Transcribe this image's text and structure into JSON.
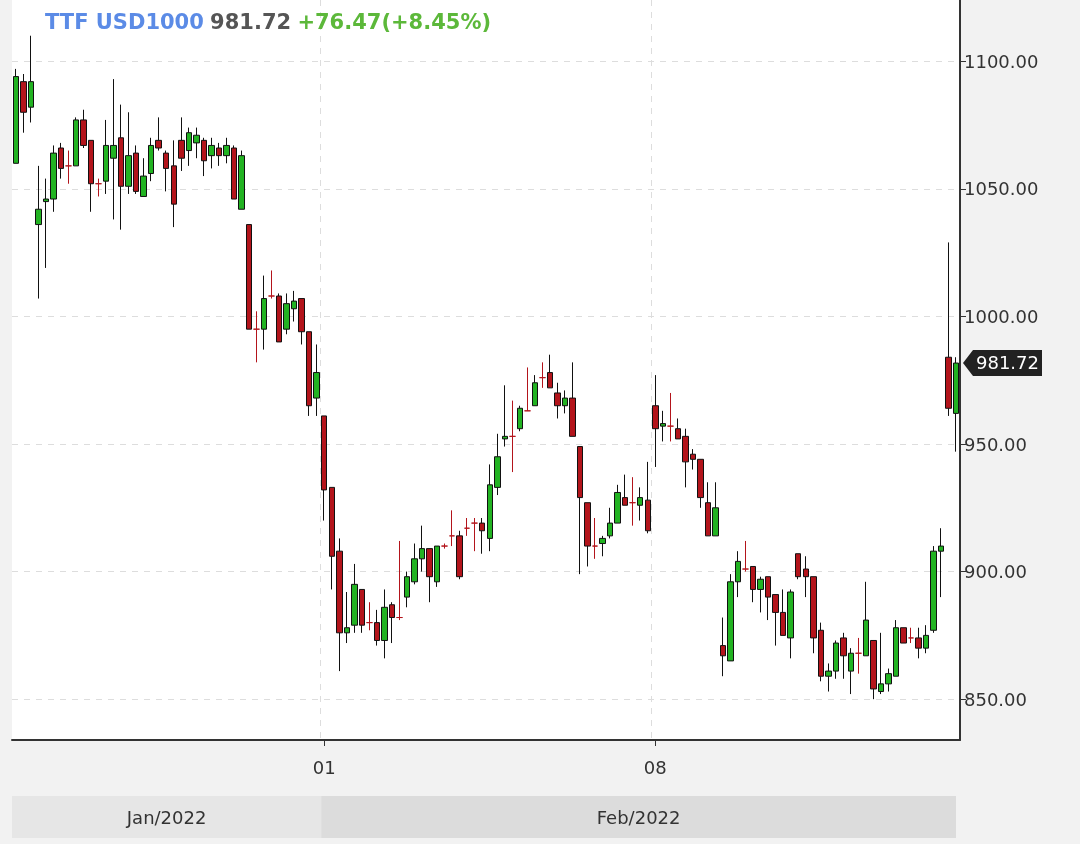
{
  "chart_data": {
    "type": "candlestick",
    "title": "TTF USD1000",
    "annotations": [
      "981.72",
      "+76.47(+8.45%)",
      "Jan/2022",
      "Feb/2022",
      "981.72"
    ],
    "categories": [
      null,
      null,
      null,
      null,
      null,
      null,
      null,
      null,
      null,
      null,
      null,
      null,
      null,
      null,
      null,
      null,
      null,
      null,
      null,
      null,
      null,
      null,
      null,
      null,
      null,
      null,
      null,
      null,
      null,
      null,
      null,
      null,
      null,
      null,
      null,
      null,
      null,
      null,
      null,
      null,
      null,
      "01",
      null,
      null,
      null,
      null,
      null,
      null,
      null,
      null,
      null,
      null,
      null,
      null,
      null,
      null,
      null,
      null,
      null,
      null,
      null,
      null,
      null,
      null,
      null,
      null,
      null,
      null,
      null,
      null,
      null,
      null,
      null,
      null,
      null,
      null,
      null,
      null,
      null,
      null,
      null,
      null,
      null,
      null,
      null,
      "08",
      null,
      null,
      null,
      null,
      null,
      null,
      null,
      null,
      null,
      null,
      null,
      null,
      null,
      null,
      null,
      null,
      null,
      null,
      null,
      null,
      null,
      null,
      null,
      null,
      null,
      null,
      null,
      null,
      null,
      null,
      null,
      null,
      null,
      null,
      null,
      null,
      null,
      null,
      null,
      null
    ],
    "ohlc": [
      [
        1060,
        1097,
        1060,
        1094
      ],
      [
        1092,
        1095,
        1072,
        1080
      ],
      [
        1082,
        1110,
        1076,
        1092
      ],
      [
        1036,
        1059,
        1007,
        1042
      ],
      [
        1045,
        1054,
        1019,
        1046
      ],
      [
        1046,
        1067,
        1041,
        1064
      ],
      [
        1066,
        1068,
        1054,
        1058
      ],
      [
        1059,
        1065,
        1052,
        1059
      ],
      [
        1059,
        1078,
        1059,
        1077
      ],
      [
        1077,
        1081,
        1066,
        1067
      ],
      [
        1069,
        1069,
        1041,
        1052
      ],
      [
        1052,
        1054,
        1047,
        1052
      ],
      [
        1053,
        1077,
        1048,
        1067
      ],
      [
        1062,
        1093,
        1038,
        1067
      ],
      [
        1070,
        1083,
        1034,
        1051
      ],
      [
        1051,
        1080,
        1048,
        1063
      ],
      [
        1064,
        1067,
        1048,
        1049
      ],
      [
        1047,
        1062,
        1047,
        1055
      ],
      [
        1056,
        1070,
        1053,
        1067
      ],
      [
        1069,
        1078,
        1065,
        1066
      ],
      [
        1064,
        1065,
        1049,
        1058
      ],
      [
        1059,
        1069,
        1035,
        1044
      ],
      [
        1069,
        1078,
        1057,
        1062
      ],
      [
        1065,
        1074,
        1059,
        1072
      ],
      [
        1068,
        1074,
        1062,
        1071
      ],
      [
        1069,
        1070,
        1055,
        1061
      ],
      [
        1063,
        1070,
        1058,
        1067
      ],
      [
        1066,
        1068,
        1059,
        1063
      ],
      [
        1063,
        1070,
        1060,
        1067
      ],
      [
        1066,
        1067,
        1046,
        1046
      ],
      [
        1042,
        1065,
        1042,
        1063
      ],
      [
        1036,
        1036,
        995,
        995
      ],
      [
        995,
        1002,
        982,
        995
      ],
      [
        995,
        1016,
        987,
        1007
      ],
      [
        1008,
        1018,
        1007,
        1008
      ],
      [
        1008,
        1009,
        990,
        990
      ],
      [
        995,
        1009,
        993,
        1005
      ],
      [
        1003,
        1010,
        998,
        1006
      ],
      [
        1007,
        1007,
        989,
        994
      ],
      [
        994,
        994,
        961,
        965
      ],
      [
        968,
        989,
        961,
        978
      ],
      [
        961,
        961,
        920,
        932
      ],
      [
        933,
        933,
        893,
        906
      ],
      [
        908,
        913,
        861,
        876
      ],
      [
        876,
        892,
        872,
        878
      ],
      [
        879,
        903,
        876,
        895
      ],
      [
        893,
        893,
        876,
        879
      ],
      [
        880,
        888,
        877,
        880
      ],
      [
        880,
        885,
        871,
        873
      ],
      [
        873,
        893,
        866,
        886
      ],
      [
        887,
        888,
        872,
        882
      ],
      [
        882,
        912,
        881,
        882
      ],
      [
        890,
        900,
        886,
        898
      ],
      [
        896,
        911,
        895,
        905
      ],
      [
        905,
        918,
        900,
        909
      ],
      [
        909,
        909,
        888,
        898
      ],
      [
        896,
        910,
        894,
        910
      ],
      [
        910,
        911,
        909,
        910
      ],
      [
        914,
        924,
        910,
        914
      ],
      [
        914,
        916,
        897,
        898
      ],
      [
        917,
        921,
        914,
        917
      ],
      [
        919,
        921,
        908,
        919
      ],
      [
        919,
        921,
        907,
        916
      ],
      [
        913,
        942,
        908,
        934
      ],
      [
        933,
        954,
        930,
        945
      ],
      [
        952,
        973,
        949,
        953
      ],
      [
        953,
        967,
        939,
        953
      ],
      [
        956,
        965,
        955,
        964
      ],
      [
        963,
        980,
        963,
        963
      ],
      [
        965,
        977,
        965,
        974
      ],
      [
        976,
        982,
        972,
        976
      ],
      [
        978,
        985,
        972,
        972
      ],
      [
        970,
        974,
        960,
        965
      ],
      [
        965,
        971,
        962,
        968
      ],
      [
        968,
        982,
        953,
        953
      ],
      [
        949,
        949,
        899,
        929
      ],
      [
        927,
        927,
        902,
        910
      ],
      [
        910,
        921,
        905,
        910
      ],
      [
        911,
        914,
        906,
        913
      ],
      [
        914,
        925,
        913,
        919
      ],
      [
        919,
        934,
        919,
        931
      ],
      [
        929,
        938,
        926,
        926
      ],
      [
        927,
        937,
        918,
        927
      ],
      [
        926,
        933,
        920,
        929
      ],
      [
        928,
        943,
        915,
        916
      ],
      [
        965,
        977,
        941,
        956
      ],
      [
        957,
        963,
        951,
        958
      ],
      [
        957,
        970,
        951,
        957
      ],
      [
        956,
        960,
        952,
        952
      ],
      [
        953,
        956,
        933,
        943
      ],
      [
        946,
        948,
        940,
        944
      ],
      [
        944,
        944,
        925,
        929
      ],
      [
        927,
        935,
        914,
        914
      ],
      [
        914,
        935,
        914,
        925
      ],
      [
        871,
        882,
        859,
        867
      ],
      [
        865,
        899,
        865,
        896
      ],
      [
        896,
        908,
        890,
        904
      ],
      [
        901,
        912,
        900,
        901
      ],
      [
        902,
        902,
        888,
        893
      ],
      [
        893,
        898,
        884,
        897
      ],
      [
        898,
        898,
        881,
        890
      ],
      [
        891,
        891,
        871,
        884
      ],
      [
        884,
        893,
        875,
        875
      ],
      [
        874,
        893,
        866,
        892
      ],
      [
        907,
        907,
        897,
        898
      ],
      [
        901,
        906,
        890,
        898
      ],
      [
        898,
        898,
        868,
        874
      ],
      [
        877,
        880,
        857,
        859
      ],
      [
        859,
        864,
        853,
        861
      ],
      [
        861,
        873,
        858,
        872
      ],
      [
        874,
        876,
        858,
        867
      ],
      [
        861,
        870,
        852,
        868
      ],
      [
        868,
        874,
        860,
        868
      ],
      [
        867,
        896,
        867,
        881
      ],
      [
        873,
        873,
        850,
        854
      ],
      [
        853,
        876,
        852,
        856
      ],
      [
        856,
        862,
        853,
        860
      ],
      [
        859,
        881,
        859,
        878
      ],
      [
        878,
        878,
        872,
        872
      ],
      [
        874,
        878,
        872,
        874
      ],
      [
        874,
        878,
        866,
        870
      ],
      [
        870,
        879,
        868,
        875
      ],
      [
        877,
        910,
        876,
        908
      ],
      [
        908,
        917,
        890,
        910
      ],
      [
        984,
        1029,
        961,
        964
      ],
      [
        962,
        984,
        947,
        981.72
      ]
    ],
    "colors": [
      "#22b322",
      "#b3141b",
      "#22b322",
      "#22b322",
      "#22b322",
      "#22b322",
      "#b3141b",
      "#b3141b",
      "#22b322",
      "#b3141b",
      "#b3141b",
      "#b3141b",
      "#22b322",
      "#22b322",
      "#b3141b",
      "#22b322",
      "#b3141b",
      "#22b322",
      "#22b322",
      "#b3141b",
      "#b3141b",
      "#b3141b",
      "#b3141b",
      "#22b322",
      "#22b322",
      "#b3141b",
      "#22b322",
      "#b3141b",
      "#22b322",
      "#b3141b",
      "#22b322",
      "#b3141b",
      "#b3141b",
      "#22b322",
      "#b3141b",
      "#b3141b",
      "#22b322",
      "#22b322",
      "#b3141b",
      "#b3141b",
      "#22b322",
      "#b3141b",
      "#b3141b",
      "#b3141b",
      "#22b322",
      "#22b322",
      "#b3141b",
      "#b3141b",
      "#b3141b",
      "#22b322",
      "#b3141b",
      "#b3141b",
      "#22b322",
      "#22b322",
      "#22b322",
      "#b3141b",
      "#22b322",
      "#b3141b",
      "#b3141b",
      "#b3141b",
      "#b3141b",
      "#b3141b",
      "#b3141b",
      "#22b322",
      "#22b322",
      "#22b322",
      "#b3141b",
      "#22b322",
      "#b3141b",
      "#22b322",
      "#b3141b",
      "#b3141b",
      "#b3141b",
      "#22b322",
      "#b3141b",
      "#b3141b",
      "#b3141b",
      "#b3141b",
      "#22b322",
      "#22b322",
      "#22b322",
      "#b3141b",
      "#b3141b",
      "#22b322",
      "#b3141b",
      "#b3141b",
      "#22b322",
      "#b3141b",
      "#b3141b",
      "#b3141b",
      "#b3141b",
      "#b3141b",
      "#b3141b",
      "#22b322",
      "#b3141b",
      "#22b322",
      "#22b322",
      "#b3141b",
      "#b3141b",
      "#22b322",
      "#b3141b",
      "#b3141b",
      "#b3141b",
      "#22b322",
      "#b3141b",
      "#b3141b",
      "#b3141b",
      "#b3141b",
      "#22b322",
      "#22b322",
      "#b3141b",
      "#22b322",
      "#b3141b",
      "#22b322",
      "#b3141b",
      "#22b322",
      "#22b322",
      "#22b322",
      "#b3141b",
      "#b3141b",
      "#b3141b",
      "#22b322",
      "#22b322",
      "#22b322",
      "#b3141b",
      "#22b322"
    ],
    "ylim": [
      834,
      1124
    ],
    "yticks": [
      {
        "value": 850,
        "label": "850.00"
      },
      {
        "value": 900,
        "label": "900.00"
      },
      {
        "value": 950,
        "label": "950.00"
      },
      {
        "value": 1000,
        "label": "1000.00"
      },
      {
        "value": 1050,
        "label": "1050.00"
      },
      {
        "value": 1100,
        "label": "1100.00"
      }
    ],
    "grid": true
  }
}
